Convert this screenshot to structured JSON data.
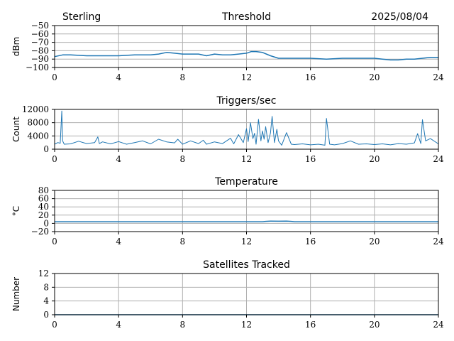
{
  "header": {
    "station": "Sterling",
    "date": "2025/08/04"
  },
  "colors": {
    "series": "#1f77b4",
    "grid": "#b0b0b0"
  },
  "chart_data": [
    {
      "type": "line",
      "title": "Threshold",
      "ylabel": "dBm",
      "xlim": [
        0,
        24
      ],
      "ylim": [
        -100,
        -50
      ],
      "xticks": [
        0,
        4,
        8,
        12,
        16,
        20,
        24
      ],
      "yticks": [
        -100,
        -90,
        -80,
        -70,
        -60,
        -50
      ],
      "ytick_labels": [
        "−100",
        "−90",
        "−80",
        "−70",
        "−60",
        "−50"
      ],
      "grid": true,
      "x": [
        0,
        0.5,
        1,
        2,
        3,
        4,
        5,
        6,
        6.5,
        7,
        7.5,
        8,
        8.5,
        9,
        9.5,
        10,
        10.5,
        11,
        11.5,
        12,
        12.3,
        12.6,
        13,
        13.5,
        14,
        15,
        16,
        17,
        18,
        19,
        20,
        20.5,
        21,
        21.5,
        22,
        22.5,
        23,
        23.5,
        24
      ],
      "y": [
        -87,
        -85,
        -85,
        -86,
        -86,
        -86,
        -85,
        -85,
        -84,
        -82,
        -83,
        -84,
        -84,
        -84,
        -86,
        -84,
        -85,
        -85,
        -84,
        -83,
        -81,
        -81,
        -82,
        -86,
        -89,
        -89,
        -89,
        -90,
        -89,
        -89,
        -89,
        -90,
        -91,
        -91,
        -90,
        -90,
        -89,
        -88,
        -88
      ]
    },
    {
      "type": "line",
      "title": "Triggers/sec",
      "ylabel": "Count",
      "xlim": [
        0,
        24
      ],
      "ylim": [
        0,
        12000
      ],
      "xticks": [
        0,
        4,
        8,
        12,
        16,
        20,
        24
      ],
      "yticks": [
        0,
        4000,
        8000,
        12000
      ],
      "ytick_labels": [
        "0",
        "4000",
        "8000",
        "12000"
      ],
      "grid": true,
      "x": [
        0,
        0.2,
        0.35,
        0.45,
        0.5,
        0.6,
        1,
        1.5,
        2,
        2.5,
        2.7,
        2.8,
        3,
        3.5,
        4,
        4.5,
        5,
        5.5,
        6,
        6.5,
        7,
        7.5,
        7.7,
        8,
        8.5,
        9,
        9.3,
        9.5,
        10,
        10.5,
        11,
        11.2,
        11.5,
        11.8,
        12,
        12.1,
        12.25,
        12.4,
        12.5,
        12.6,
        12.75,
        12.9,
        13,
        13.1,
        13.2,
        13.35,
        13.5,
        13.6,
        13.75,
        13.9,
        14,
        14.2,
        14.5,
        14.8,
        15,
        15.5,
        16,
        16.5,
        16.9,
        17,
        17.2,
        17.5,
        18,
        18.5,
        19,
        19.5,
        20,
        20.5,
        21,
        21.5,
        22,
        22.5,
        22.7,
        22.9,
        23,
        23.2,
        23.5,
        24
      ],
      "y": [
        1500,
        2000,
        1800,
        11500,
        2500,
        1500,
        1600,
        2400,
        1700,
        2000,
        3700,
        1700,
        2200,
        1600,
        2300,
        1500,
        2000,
        2500,
        1600,
        3000,
        2200,
        1900,
        3000,
        1500,
        2500,
        1700,
        2700,
        1500,
        2200,
        1700,
        3300,
        1600,
        4400,
        2000,
        6200,
        2300,
        8000,
        3200,
        4800,
        1500,
        9000,
        2500,
        5500,
        3000,
        6800,
        2000,
        4900,
        9900,
        2000,
        6000,
        2500,
        1200,
        5000,
        1500,
        1400,
        1600,
        1300,
        1500,
        1200,
        9300,
        1500,
        1300,
        1700,
        2500,
        1500,
        1600,
        1400,
        1600,
        1300,
        1700,
        1500,
        1900,
        4700,
        1700,
        8900,
        2500,
        3200,
        1600
      ]
    },
    {
      "type": "line",
      "title": "Temperature",
      "ylabel": "°C",
      "xlim": [
        0,
        24
      ],
      "ylim": [
        -20,
        80
      ],
      "xticks": [
        0,
        4,
        8,
        12,
        16,
        20,
        24
      ],
      "yticks": [
        -20,
        0,
        20,
        40,
        60,
        80
      ],
      "ytick_labels": [
        "−20",
        "0",
        "20",
        "40",
        "60",
        "80"
      ],
      "grid": true,
      "x": [
        0,
        13,
        13.2,
        13.5,
        14,
        14.5,
        14.8,
        15,
        24
      ],
      "y": [
        4,
        4,
        4.8,
        5.5,
        5.2,
        5.6,
        4.8,
        4,
        4
      ]
    },
    {
      "type": "line",
      "title": "Satellites Tracked",
      "ylabel": "Number",
      "xlim": [
        0,
        24
      ],
      "ylim": [
        0,
        12
      ],
      "xticks": [
        0,
        4,
        8,
        12,
        16,
        20,
        24
      ],
      "yticks": [
        0,
        4,
        8,
        12
      ],
      "ytick_labels": [
        "0",
        "4",
        "8",
        "12"
      ],
      "grid": true,
      "x": [
        0,
        24
      ],
      "y": [
        0,
        0
      ]
    }
  ]
}
